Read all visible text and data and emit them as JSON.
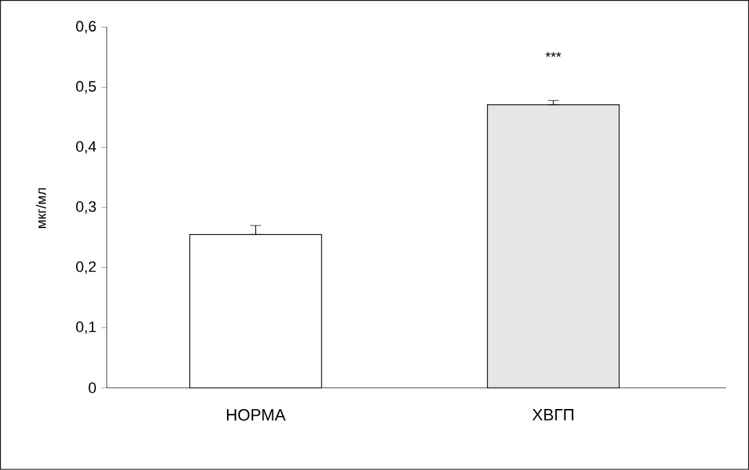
{
  "chart_data": {
    "type": "bar",
    "ylabel": "мкг/мл",
    "categories": [
      "НОРМА",
      "ХВГП"
    ],
    "values": [
      0.255,
      0.471
    ],
    "colors": [
      "#ffffff",
      "#e6e6e6"
    ],
    "errors": [
      [
        0.255,
        0.27
      ],
      [
        0.471,
        0.478
      ]
    ],
    "ylim": [
      0,
      0.6
    ],
    "yticks": [
      0,
      {
        "value": 0.1,
        "label": "0,1"
      },
      {
        "value": 0.2,
        "label": "0,2"
      },
      {
        "value": 0.3,
        "label": "0,3"
      },
      {
        "value": 0.4,
        "label": "0,4"
      },
      {
        "value": 0.5,
        "label": "0,5"
      },
      {
        "value": 0.6,
        "label": "0,6"
      }
    ],
    "annotations": [
      "***"
    ]
  }
}
